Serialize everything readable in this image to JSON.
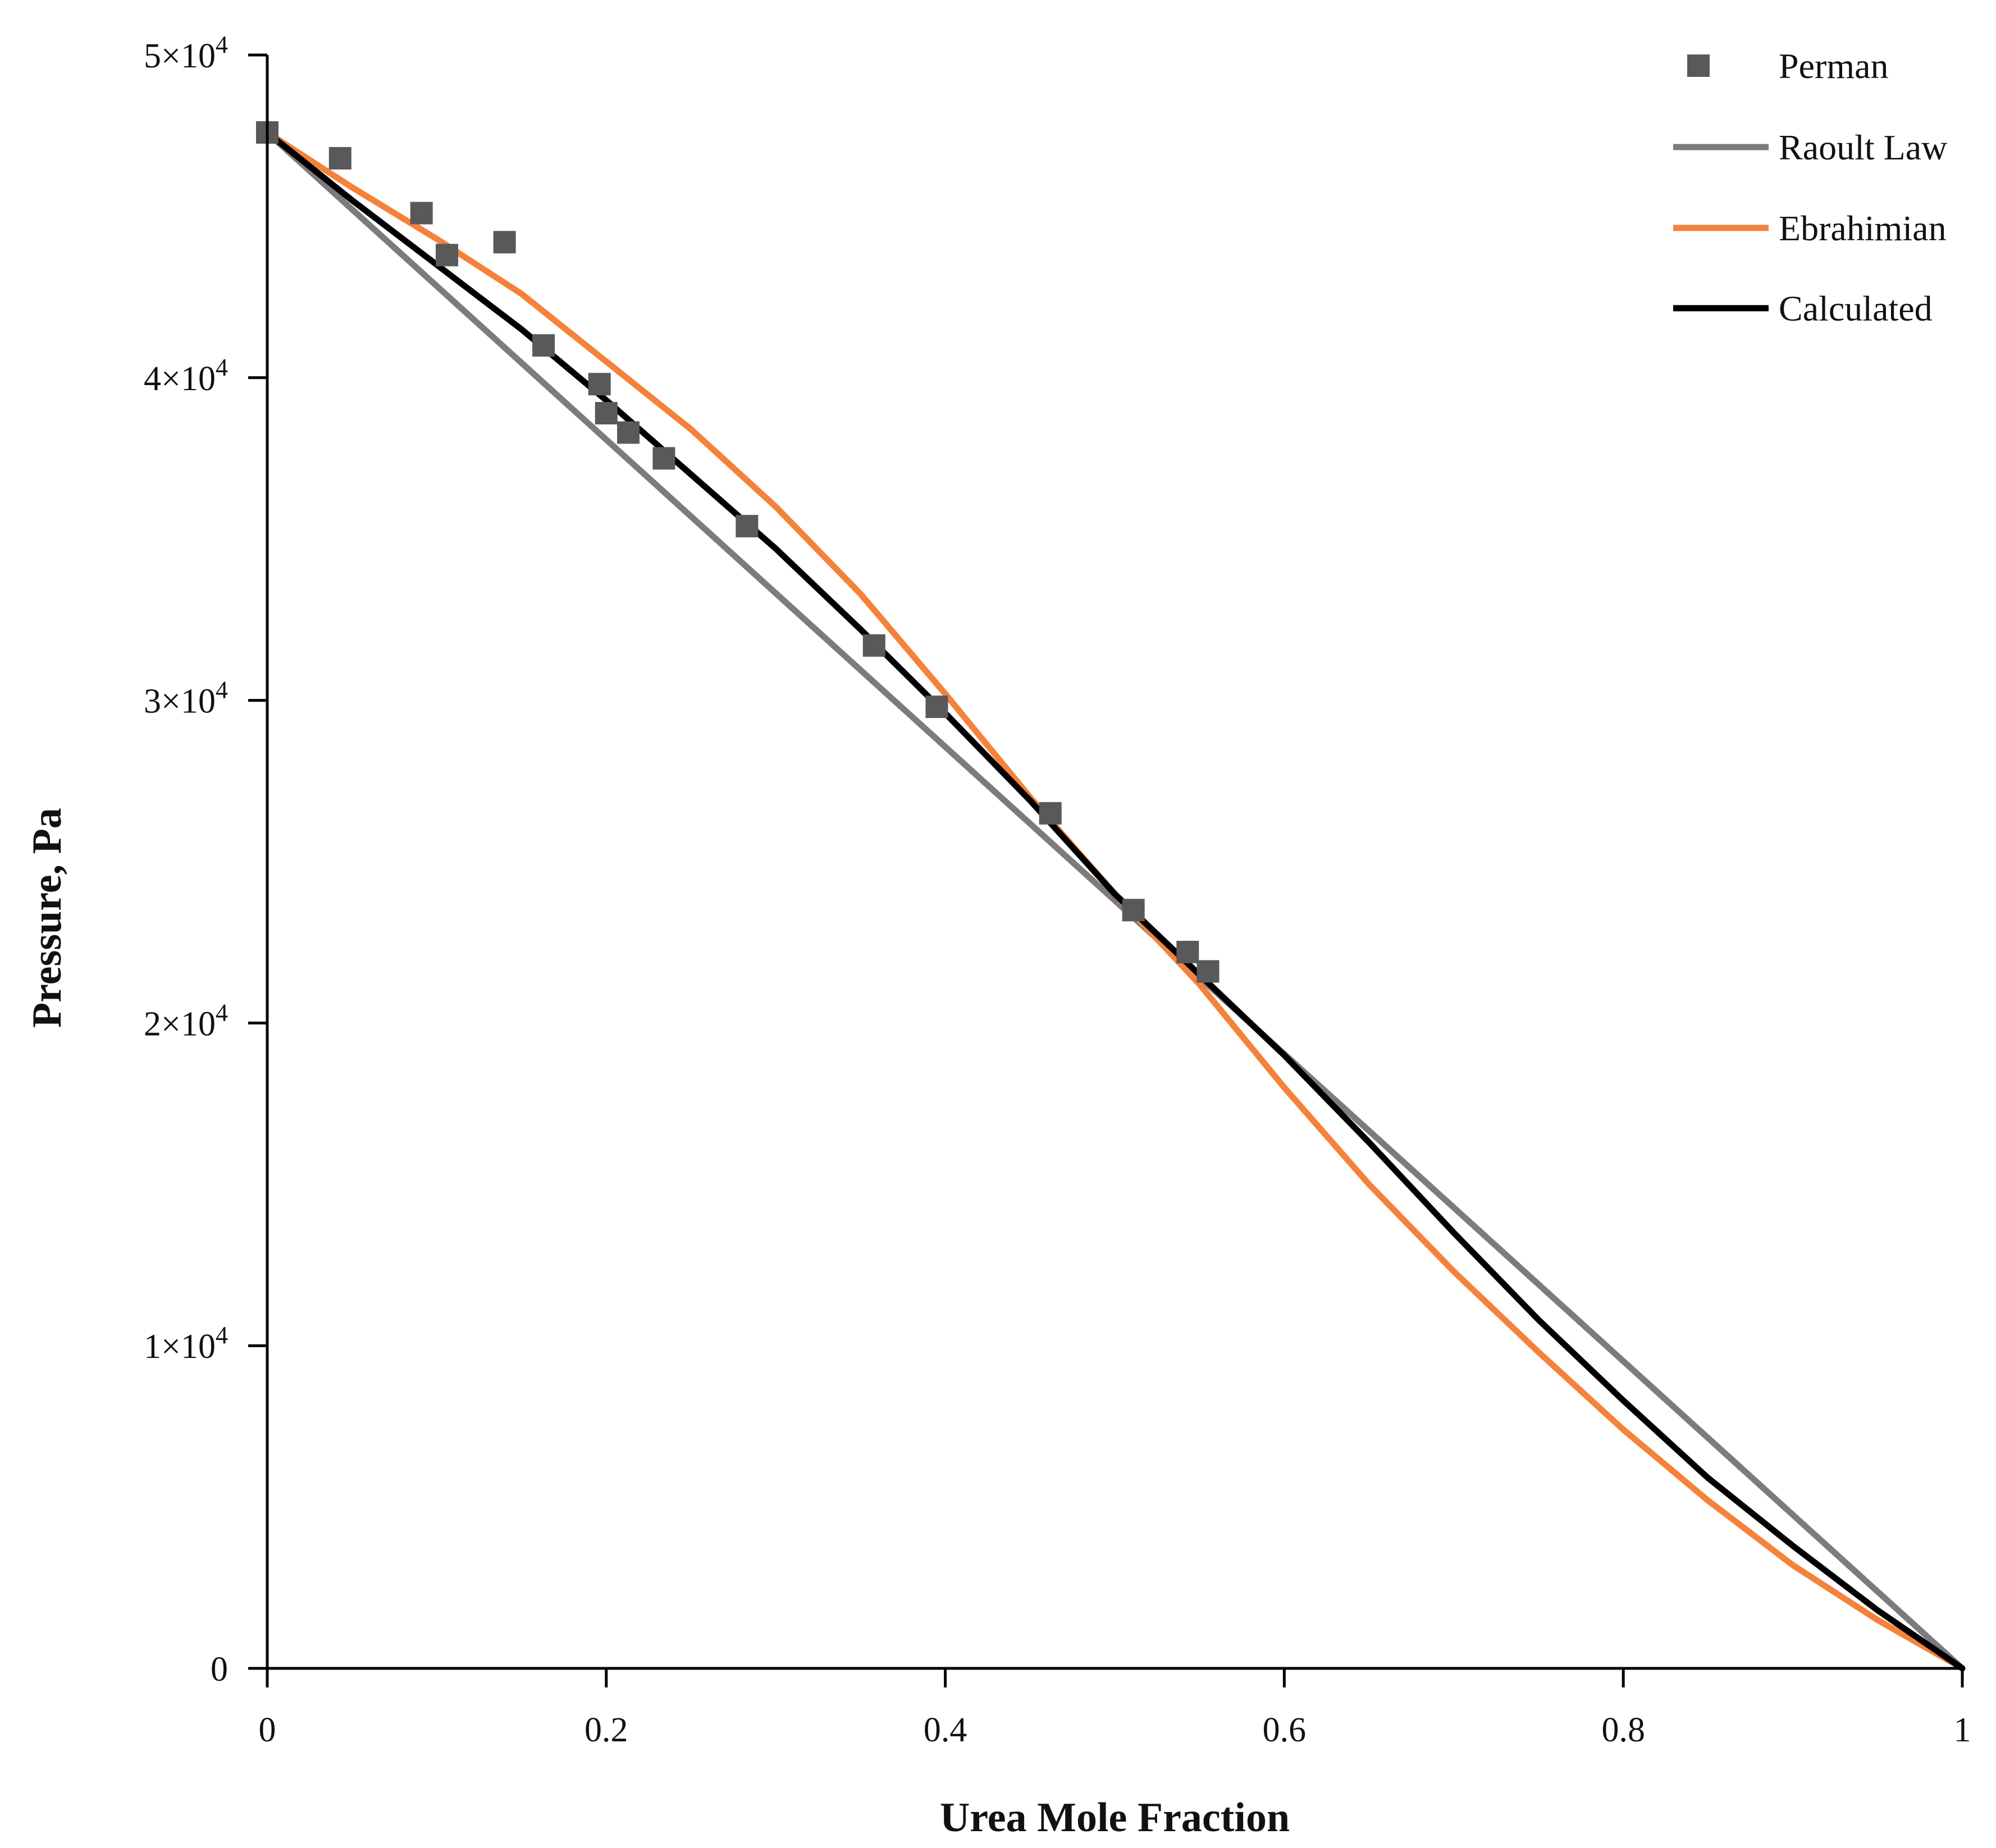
{
  "chart_data": {
    "type": "line",
    "xlabel": "Urea Mole Fraction",
    "ylabel": "Pressure, Pa",
    "xlim": [
      0,
      1
    ],
    "ylim": [
      0,
      50000
    ],
    "grid": false,
    "legend_position": "top-right",
    "x_ticks": [
      {
        "value": 0,
        "label": "0"
      },
      {
        "value": 0.2,
        "label": "0.2"
      },
      {
        "value": 0.4,
        "label": "0.4"
      },
      {
        "value": 0.6,
        "label": "0.6"
      },
      {
        "value": 0.8,
        "label": "0.8"
      },
      {
        "value": 1,
        "label": "1"
      }
    ],
    "y_ticks": [
      {
        "value": 0,
        "mantissa": "0",
        "exponent": ""
      },
      {
        "value": 10000,
        "mantissa": "1×10",
        "exponent": "4"
      },
      {
        "value": 20000,
        "mantissa": "2×10",
        "exponent": "4"
      },
      {
        "value": 30000,
        "mantissa": "3×10",
        "exponent": "4"
      },
      {
        "value": 40000,
        "mantissa": "4×10",
        "exponent": "4"
      },
      {
        "value": 50000,
        "mantissa": "5×10",
        "exponent": "4"
      }
    ],
    "series": [
      {
        "name": "Perman",
        "kind": "markers",
        "color": "#595959",
        "points": [
          [
            0.0,
            47600
          ],
          [
            0.043,
            46800
          ],
          [
            0.091,
            45100
          ],
          [
            0.106,
            43800
          ],
          [
            0.14,
            44200
          ],
          [
            0.163,
            41000
          ],
          [
            0.196,
            39800
          ],
          [
            0.2,
            38900
          ],
          [
            0.213,
            38300
          ],
          [
            0.234,
            37500
          ],
          [
            0.283,
            35400
          ],
          [
            0.358,
            31700
          ],
          [
            0.395,
            29800
          ],
          [
            0.462,
            26500
          ],
          [
            0.511,
            23500
          ],
          [
            0.543,
            22200
          ],
          [
            0.555,
            21600
          ]
        ]
      },
      {
        "name": "Raoult Law",
        "kind": "line",
        "color": "#7f7a7c",
        "points": [
          [
            0,
            47600
          ],
          [
            1,
            0
          ]
        ]
      },
      {
        "name": "Ebrahimian",
        "kind": "line",
        "color": "#f5823b",
        "points": [
          [
            0,
            47600
          ],
          [
            0.05,
            45900
          ],
          [
            0.1,
            44300
          ],
          [
            0.15,
            42600
          ],
          [
            0.2,
            40500
          ],
          [
            0.25,
            38400
          ],
          [
            0.3,
            36000
          ],
          [
            0.35,
            33300
          ],
          [
            0.4,
            30200
          ],
          [
            0.45,
            27000
          ],
          [
            0.5,
            24000
          ],
          [
            0.55,
            21200
          ],
          [
            0.6,
            18000
          ],
          [
            0.65,
            15000
          ],
          [
            0.7,
            12300
          ],
          [
            0.75,
            9800
          ],
          [
            0.8,
            7400
          ],
          [
            0.85,
            5200
          ],
          [
            0.9,
            3200
          ],
          [
            0.95,
            1500
          ],
          [
            1,
            0
          ]
        ]
      },
      {
        "name": "Calculated",
        "kind": "line",
        "color": "#000000",
        "points": [
          [
            0,
            47600
          ],
          [
            0.05,
            45500
          ],
          [
            0.1,
            43500
          ],
          [
            0.15,
            41500
          ],
          [
            0.2,
            39300
          ],
          [
            0.25,
            37000
          ],
          [
            0.3,
            34700
          ],
          [
            0.35,
            32200
          ],
          [
            0.4,
            29600
          ],
          [
            0.45,
            26900
          ],
          [
            0.5,
            24000
          ],
          [
            0.55,
            21500
          ],
          [
            0.6,
            19000
          ],
          [
            0.65,
            16300
          ],
          [
            0.7,
            13500
          ],
          [
            0.75,
            10800
          ],
          [
            0.8,
            8300
          ],
          [
            0.85,
            5900
          ],
          [
            0.9,
            3800
          ],
          [
            0.95,
            1800
          ],
          [
            1,
            0
          ]
        ]
      }
    ]
  }
}
